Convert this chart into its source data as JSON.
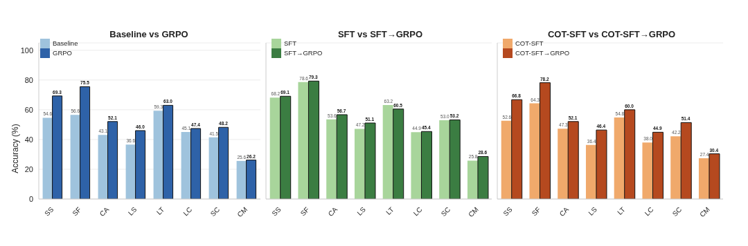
{
  "chart_data": [
    {
      "type": "bar",
      "title": "Baseline vs GRPO",
      "ylabel": "Accuracy (%)",
      "categories": [
        "SS",
        "SF",
        "CA",
        "LS",
        "LT",
        "LC",
        "SC",
        "CM"
      ],
      "series": [
        {
          "name": "Baseline",
          "color": "#9fc3dd",
          "values": [
            54.6,
            56.6,
            43.1,
            36.6,
            59.3,
            45.1,
            41.5,
            25.6
          ],
          "value_labels": [
            "54.6",
            "56.6",
            "43.1",
            "36.6",
            "59.3",
            "45.1",
            "41.5",
            "25.6"
          ]
        },
        {
          "name": "GRPO",
          "color": "#2e62a8",
          "values": [
            69.3,
            75.5,
            52.1,
            46.0,
            63.0,
            47.4,
            48.2,
            26.2
          ],
          "value_labels": [
            "69.3",
            "75.5",
            "52.1",
            "46.0",
            "63.0",
            "47.4",
            "48.2",
            "26.2"
          ]
        }
      ],
      "ylim": [
        0,
        105
      ],
      "yticks": [
        0,
        20,
        40,
        60,
        80,
        100
      ],
      "grid": "y",
      "legend": "top left"
    },
    {
      "type": "bar",
      "title": "SFT vs SFT→GRPO",
      "categories": [
        "SS",
        "SF",
        "CA",
        "LS",
        "LT",
        "LC",
        "SC",
        "CM"
      ],
      "series": [
        {
          "name": "SFT",
          "color": "#a8d59b",
          "values": [
            68.2,
            78.6,
            53.6,
            47.2,
            63.2,
            44.9,
            53.0,
            25.8
          ],
          "value_labels": [
            "68.2",
            "78.6",
            "53.6",
            "47.2",
            "63.2",
            "44.9",
            "53.0",
            "25.8"
          ]
        },
        {
          "name": "SFT→GRPO",
          "color": "#3b7d42",
          "values": [
            69.1,
            79.3,
            56.7,
            51.1,
            60.5,
            45.4,
            53.2,
            28.6
          ],
          "value_labels": [
            "69.1",
            "79.3",
            "56.7",
            "51.1",
            "60.5",
            "45.4",
            "53.2",
            "28.6"
          ]
        }
      ],
      "ylim": [
        0,
        105
      ],
      "yticks": [
        0,
        20,
        40,
        60,
        80,
        100
      ],
      "tick_labels": "x",
      "grid": "y",
      "legend": "top left"
    },
    {
      "type": "bar",
      "title": "COT-SFT vs COT-SFT→GRPO",
      "categories": [
        "SS",
        "SF",
        "CA",
        "LS",
        "LT",
        "LC",
        "SC",
        "CM"
      ],
      "series": [
        {
          "name": "COT-SFT",
          "color": "#f0a96b",
          "values": [
            52.6,
            64.3,
            47.3,
            36.4,
            54.8,
            38.0,
            42.2,
            27.4
          ],
          "value_labels": [
            "52.6",
            "64.3",
            "47.3",
            "36.4",
            "54.8",
            "38.0",
            "42.2",
            "27.4"
          ]
        },
        {
          "name": "COT-SFT→GRPO",
          "color": "#b5491f",
          "values": [
            66.8,
            78.2,
            52.1,
            46.4,
            60.0,
            44.9,
            51.4,
            30.4
          ],
          "value_labels": [
            "66.8",
            "78.2",
            "52.1",
            "46.4",
            "60.0",
            "44.9",
            "51.4",
            "30.4"
          ]
        }
      ],
      "ylim": [
        0,
        105
      ],
      "yticks": [
        0,
        20,
        40,
        60,
        80,
        100
      ],
      "tick_labels": "x",
      "grid": "y",
      "legend": "top left"
    }
  ]
}
